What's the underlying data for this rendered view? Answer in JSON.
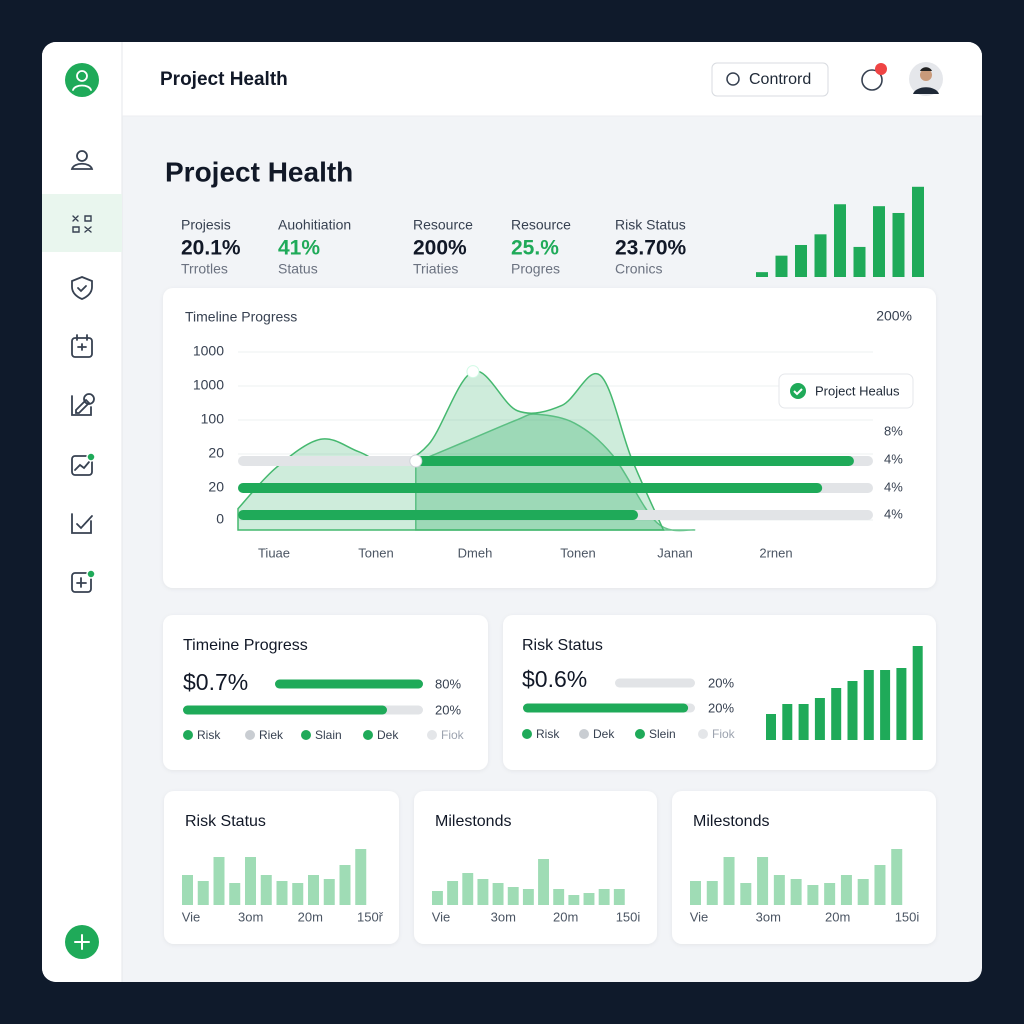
{
  "header": {
    "title": "Project Health",
    "button": "Contrord"
  },
  "page_title": "Project Health",
  "kpis": [
    {
      "label": "Projesis",
      "value": "20.1%",
      "sub": "Trrotles",
      "highlight": false
    },
    {
      "label": "Auohitiation",
      "value": "41%",
      "sub": "Status",
      "highlight": true
    },
    {
      "label": "Resource",
      "value": "200%",
      "sub": "Triaties",
      "highlight": false
    },
    {
      "label": "Resource",
      "value": "25.%",
      "sub": "Progres",
      "highlight": true
    },
    {
      "label": "Risk Status",
      "value": "23.70%",
      "sub": "Cronics",
      "highlight": false
    }
  ],
  "top_bars": {
    "values": [
      5,
      22,
      33,
      44,
      75,
      31,
      73,
      66,
      93
    ],
    "color": "#1faa59"
  },
  "timeline": {
    "title": "Timeline Progress",
    "corner_label": "200%",
    "y_labels": [
      "1000",
      "1000",
      "100",
      "20",
      "20",
      "0"
    ],
    "x_labels": [
      "Tiuae",
      "Tonen",
      "Dmeh",
      "Tonen",
      "Janan",
      "2rnen"
    ],
    "legend": "Project Healus",
    "area_front": {
      "x": [
        0,
        6,
        13,
        19,
        24,
        30,
        37,
        44,
        51,
        57,
        62,
        67
      ],
      "y": [
        12,
        35,
        51,
        44,
        37,
        48,
        89,
        67,
        70,
        87,
        40,
        0
      ]
    },
    "area_back": {
      "x": [
        28,
        36,
        44,
        47,
        53,
        59,
        66,
        72
      ],
      "y": [
        38,
        50,
        62,
        65,
        60,
        42,
        4,
        0
      ]
    },
    "progress": [
      {
        "from": 28,
        "to": 97
      },
      {
        "from": 0,
        "to": 92
      },
      {
        "from": 0,
        "to": 63
      }
    ],
    "right_labels": [
      "8%",
      "4%",
      "4%",
      "4%"
    ]
  },
  "mid_cards": [
    {
      "title": "Timeine Progress",
      "value": "$0.7%",
      "progress": [
        {
          "fill": 100,
          "label": "80%"
        },
        {
          "fill": 85,
          "label": "20%"
        }
      ],
      "legend": [
        {
          "label": "Risk",
          "color": "#1faa59"
        },
        {
          "label": "Riek",
          "color": "#c9cdd2"
        },
        {
          "label": "Slain",
          "color": "#1faa59"
        },
        {
          "label": "Dek",
          "color": "#1faa59"
        },
        {
          "label": "Fiok",
          "color": "#e4e6e9"
        }
      ]
    },
    {
      "title": "Risk Status",
      "value": "$0.6%",
      "progress": [
        {
          "fill": 0,
          "label": "20%"
        },
        {
          "fill": 96,
          "label": "20%"
        }
      ],
      "legend": [
        {
          "label": "Risk",
          "color": "#1faa59"
        },
        {
          "label": "Dek",
          "color": "#c9cdd2"
        },
        {
          "label": "Slein",
          "color": "#1faa59"
        },
        {
          "label": "Fiok",
          "color": "#e4e6e9"
        }
      ],
      "bars": {
        "values": [
          26,
          36,
          36,
          42,
          52,
          59,
          70,
          70,
          72,
          94
        ],
        "color": "#1faa59"
      }
    }
  ],
  "bottom_cards": [
    {
      "title": "Risk Status",
      "bars": {
        "values": [
          30,
          24,
          48,
          22,
          48,
          30,
          24,
          22,
          30,
          26,
          40,
          56
        ],
        "color": "#9fdcb5"
      },
      "x_labels": [
        "Vie",
        "3om",
        "20m",
        "150ř"
      ]
    },
    {
      "title": "Milestonds",
      "bars": {
        "values": [
          14,
          24,
          32,
          26,
          22,
          18,
          16,
          46,
          16,
          10,
          12,
          16,
          16
        ],
        "color": "#9fdcb5"
      },
      "x_labels": [
        "Vie",
        "3om",
        "20m",
        "150i"
      ]
    },
    {
      "title": "Milestonds",
      "bars": {
        "values": [
          24,
          24,
          48,
          22,
          48,
          30,
          26,
          20,
          22,
          30,
          26,
          40,
          56
        ],
        "color": "#9fdcb5"
      },
      "x_labels": [
        "Vie",
        "3om",
        "20m",
        "150i"
      ]
    }
  ]
}
